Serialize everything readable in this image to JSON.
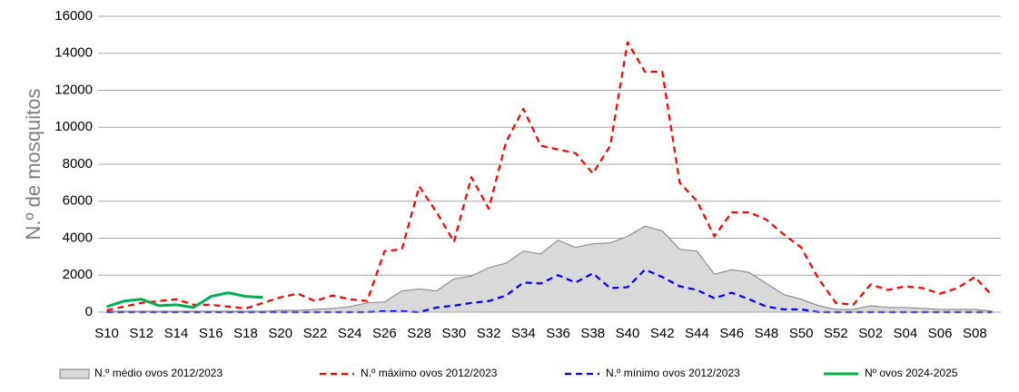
{
  "chart_data": {
    "type": "line",
    "y_label": "N.º de mosquitos",
    "categories": [
      "S10",
      null,
      "S12",
      null,
      "S14",
      null,
      "S16",
      null,
      "S18",
      null,
      "S20",
      null,
      "S22",
      null,
      "S24",
      null,
      "S26",
      null,
      "S28",
      null,
      "S30",
      null,
      "S32",
      null,
      "S34",
      null,
      "S36",
      null,
      "S38",
      null,
      "S40",
      null,
      "S42",
      null,
      "S44",
      null,
      "S46",
      null,
      "S48",
      null,
      "S50",
      null,
      "S52",
      null,
      "S02",
      null,
      "S04",
      null,
      "S06",
      null,
      "S08",
      null
    ],
    "series": [
      {
        "name": "N.º médio ovos 2012/2023",
        "kind": "area",
        "color": "#d9d9d9",
        "stroke": "#7f7f7f",
        "dashed": false,
        "values": [
          50,
          50,
          50,
          50,
          50,
          50,
          50,
          50,
          50,
          50,
          100,
          100,
          150,
          200,
          300,
          500,
          550,
          1150,
          1250,
          1150,
          1800,
          1950,
          2400,
          2650,
          3300,
          3150,
          3900,
          3500,
          3700,
          3750,
          4100,
          4650,
          4400,
          3400,
          3300,
          2050,
          2300,
          2150,
          1550,
          950,
          700,
          350,
          150,
          150,
          350,
          250,
          250,
          200,
          150,
          150,
          150,
          50
        ]
      },
      {
        "name": "N.º máximo ovos 2012/2023",
        "kind": "line",
        "color": "#ff0000",
        "dashed": true,
        "values": [
          100,
          300,
          500,
          600,
          700,
          400,
          400,
          300,
          200,
          500,
          800,
          1000,
          600,
          900,
          700,
          600,
          3300,
          3400,
          6800,
          5400,
          3800,
          7300,
          5600,
          9200,
          11000,
          9000,
          8800,
          8600,
          7500,
          9000,
          14600,
          13000,
          13000,
          7000,
          6000,
          4100,
          5400,
          5400,
          5000,
          4200,
          3500,
          1800,
          500,
          400,
          1500,
          1200,
          1400,
          1300,
          1000,
          1300,
          1900,
          900
        ]
      },
      {
        "name": "N.º mínimo ovos 2012/2023",
        "kind": "line",
        "color": "#0000ff",
        "dashed": true,
        "values": [
          0,
          0,
          0,
          0,
          0,
          0,
          0,
          0,
          0,
          0,
          0,
          0,
          0,
          0,
          0,
          0,
          50,
          50,
          0,
          250,
          350,
          500,
          600,
          900,
          1600,
          1550,
          2000,
          1600,
          2100,
          1300,
          1350,
          2300,
          1900,
          1400,
          1200,
          750,
          1050,
          700,
          300,
          150,
          150,
          0,
          0,
          0,
          0,
          0,
          0,
          0,
          0,
          0,
          0,
          0
        ]
      },
      {
        "name": "Nº ovos 2024-2025",
        "kind": "line",
        "color": "#00b050",
        "dashed": false,
        "values": [
          300,
          600,
          700,
          350,
          400,
          250,
          850,
          1050,
          850,
          800,
          null,
          null,
          null,
          null,
          null,
          null,
          null,
          null,
          null,
          null,
          null,
          null,
          null,
          null,
          null,
          null,
          null,
          null,
          null,
          null,
          null,
          null,
          null,
          null,
          null,
          null,
          null,
          null,
          null,
          null,
          null,
          null,
          null,
          null,
          null,
          null,
          null,
          null,
          null,
          null,
          null,
          null
        ]
      }
    ],
    "ylim": [
      0,
      16000
    ],
    "yticks": [
      0,
      2000,
      4000,
      6000,
      8000,
      10000,
      12000,
      14000,
      16000
    ],
    "grid": true
  }
}
